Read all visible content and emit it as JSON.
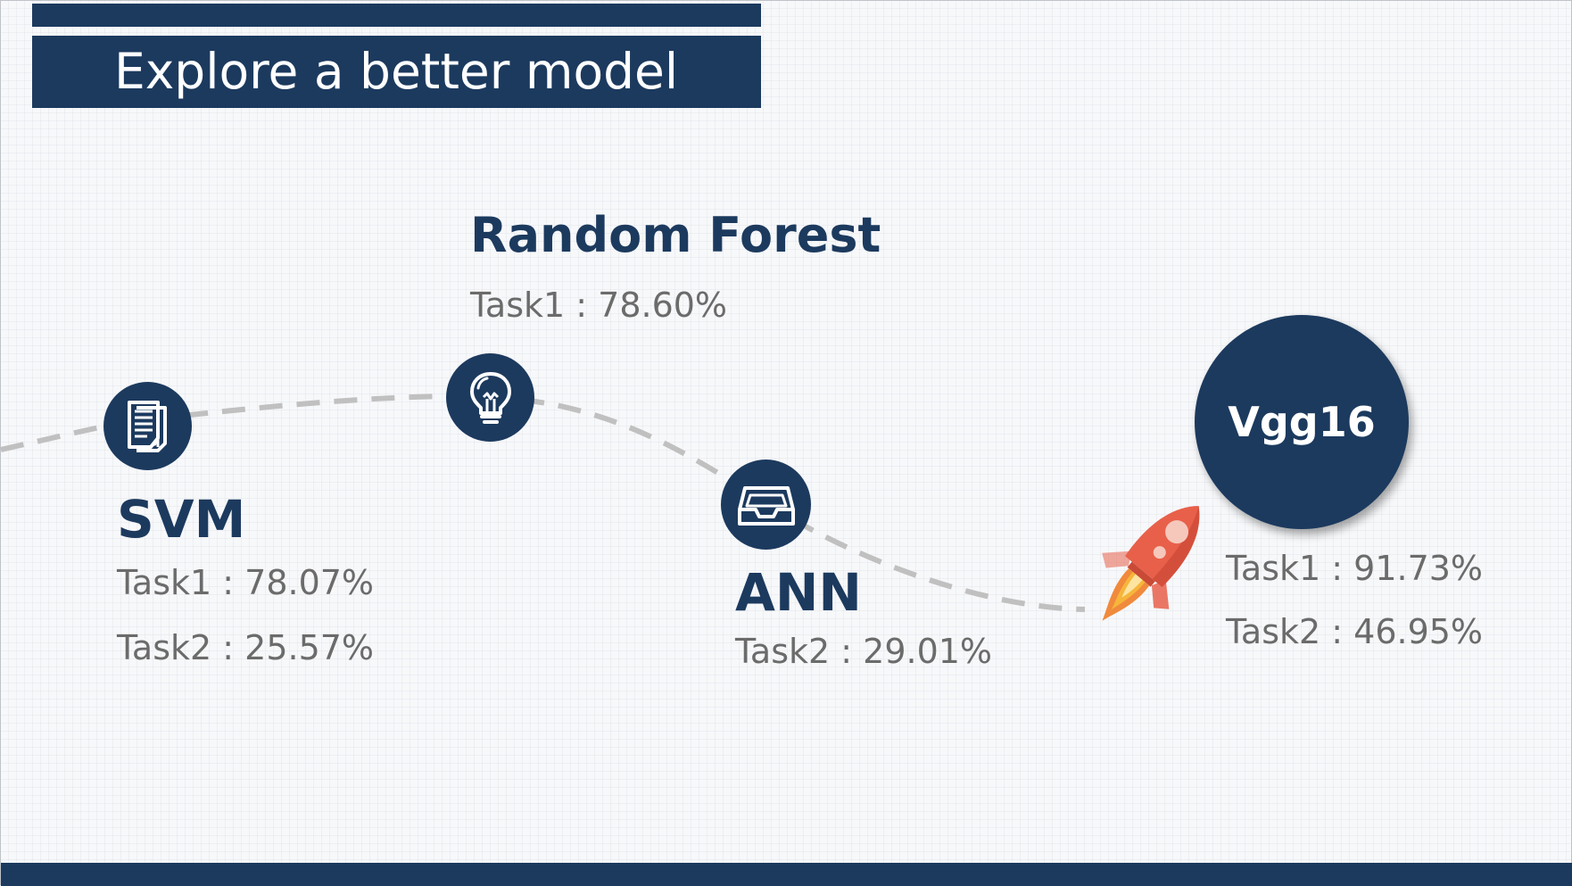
{
  "slide": {
    "title": "Explore a better model"
  },
  "models": {
    "svm": {
      "name": "SVM",
      "icon": "document-icon",
      "task1": "Task1 : 78.07%",
      "task2": "Task2 : 25.57%"
    },
    "random_forest": {
      "name": "Random Forest",
      "icon": "lightbulb-icon",
      "task1": "Task1 : 78.60%"
    },
    "ann": {
      "name": "ANN",
      "icon": "inbox-tray-icon",
      "task2": "Task2 : 29.01%"
    },
    "vgg16": {
      "name": "Vgg16",
      "icon": "rocket-icon",
      "task1": "Task1 : 91.73%",
      "task2": "Task2 : 46.95%"
    }
  },
  "colors": {
    "navy": "#1c3a5e",
    "text_gray": "#6b6b6b",
    "dash_gray": "#c0c0c0",
    "rocket_orange": "#e8604a",
    "flame_yellow": "#f6b53b"
  }
}
